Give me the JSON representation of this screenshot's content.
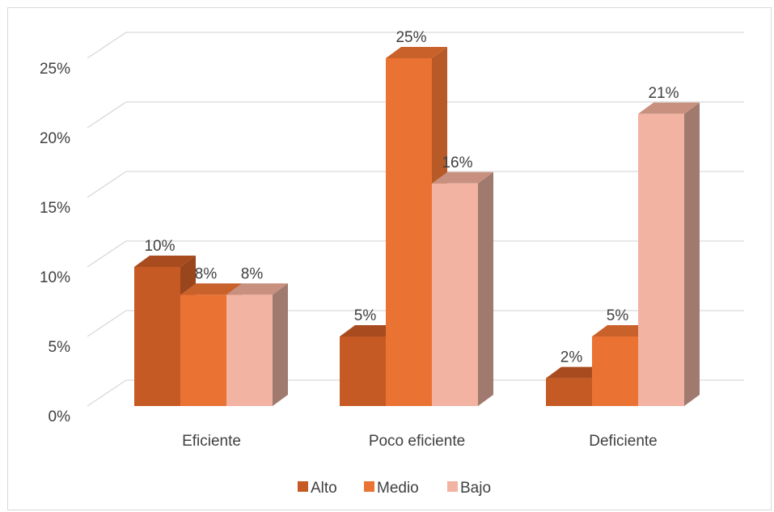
{
  "chart_data": {
    "type": "bar",
    "categories": [
      "Eficiente",
      "Poco eficiente",
      "Deficiente"
    ],
    "series": [
      {
        "name": "Alto",
        "values": [
          10,
          5,
          2
        ],
        "labels": [
          "10%",
          "5%",
          "2%"
        ]
      },
      {
        "name": "Medio",
        "values": [
          8,
          25,
          5
        ],
        "labels": [
          "8%",
          "25%",
          "5%"
        ]
      },
      {
        "name": "Bajo",
        "values": [
          8,
          16,
          21
        ],
        "labels": [
          "8%",
          "16%",
          "21%"
        ]
      }
    ],
    "y_ticks": [
      "0%",
      "5%",
      "10%",
      "15%",
      "20%",
      "25%"
    ],
    "ylim": [
      0,
      25
    ],
    "grid": true,
    "legend_position": "bottom",
    "colors": {
      "Alto": {
        "front": "#c55a24",
        "side": "#99461c",
        "top": "#a84c1f"
      },
      "Medio": {
        "front": "#ea7233",
        "side": "#b85a28",
        "top": "#c9612b"
      },
      "Bajo": {
        "front": "#f2b3a2",
        "side": "#a07a6e",
        "top": "#c8907f"
      },
      "grid": "#d9d9d9"
    }
  }
}
